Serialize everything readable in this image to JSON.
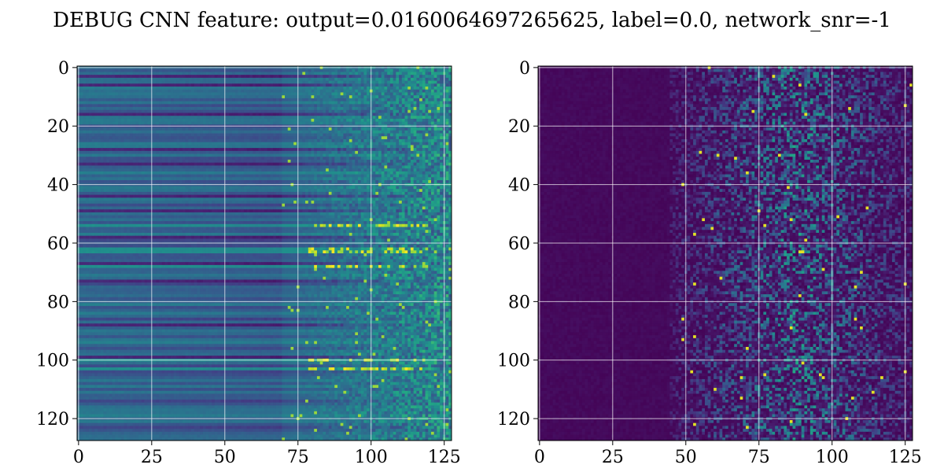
{
  "title": "DEBUG CNN feature: output=0.0160064697265625, label=0.0, network_snr=-1",
  "chart_data": [
    {
      "type": "heatmap",
      "name_hint": "",
      "colormap": "viridis",
      "rows": 128,
      "cols": 128,
      "x_ticks": [
        0,
        25,
        50,
        75,
        100,
        125
      ],
      "y_ticks": [
        0,
        20,
        40,
        60,
        80,
        100,
        120
      ],
      "xlim": [
        -0.5,
        127.5
      ],
      "ylim": [
        127.5,
        -0.5
      ],
      "grid": true,
      "description_levels": {
        "left_band_cols": [
          0,
          70
        ],
        "left_band_level": 0.28,
        "noisy_region_cols": [
          70,
          128
        ],
        "noisy_region_level": 0.45
      },
      "bright_rows": [
        54,
        62,
        63,
        68,
        100,
        103
      ],
      "dark_rows": [
        3,
        6,
        16,
        28,
        33,
        44,
        49,
        58,
        67,
        73,
        88,
        99
      ]
    },
    {
      "type": "heatmap",
      "colormap": "viridis",
      "rows": 128,
      "cols": 128,
      "x_ticks": [
        0,
        25,
        50,
        75,
        100,
        125
      ],
      "y_ticks": [
        0,
        20,
        40,
        60,
        80,
        100,
        120
      ],
      "xlim": [
        -0.5,
        127.5
      ],
      "ylim": [
        127.5,
        -0.5
      ],
      "grid": true,
      "description_levels": {
        "dark_cols": [
          0,
          45
        ],
        "dark_level": 0.02,
        "structured_region_cols": [
          45,
          128
        ],
        "structured_center_col": 88
      }
    }
  ],
  "colors": {
    "viridis_dark": "#440154",
    "viridis_mid": "#21918c",
    "viridis_bright": "#fde725",
    "grid": "#ffffff"
  }
}
